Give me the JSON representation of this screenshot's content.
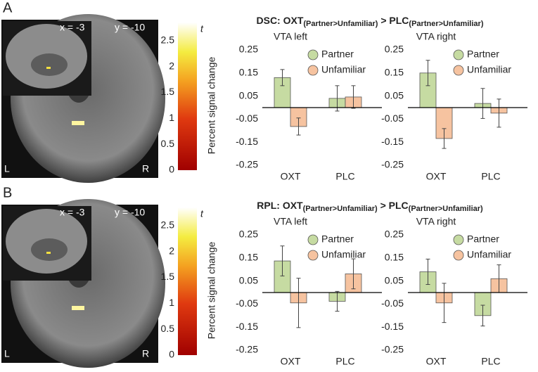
{
  "panels": [
    {
      "label": "A",
      "brain": {
        "x_coord": "x = -3",
        "y_coord": "y = -10",
        "left": "L",
        "right": "R"
      },
      "colorbar": {
        "label": "t",
        "lim": [
          0,
          2.85
        ],
        "ticks": [
          0,
          0.5,
          1,
          1.5,
          2,
          2.5
        ]
      },
      "title_parts": [
        "DSC: OXT",
        "(Partner>Unfamiliar)",
        " > PLC",
        "(Partner>Unfamiliar)"
      ],
      "ylabel": "Percent signal change"
    },
    {
      "label": "B",
      "brain": {
        "x_coord": "x = -3",
        "y_coord": "y = -10",
        "left": "L",
        "right": "R"
      },
      "colorbar": {
        "label": "t",
        "lim": [
          0,
          2.85
        ],
        "ticks": [
          0,
          0.5,
          1,
          1.5,
          2,
          2.5
        ]
      },
      "title_parts": [
        "RPL: OXT",
        "(Partner>Unfamiliar)",
        " > PLC",
        "(Partner>Unfamiliar)"
      ],
      "ylabel": "Percent signal change"
    }
  ],
  "chart_data": [
    {
      "type": "bar",
      "title": "VTA left",
      "categories": [
        "OXT",
        "PLC"
      ],
      "ylim": [
        -0.25,
        0.25
      ],
      "yticks": [
        0.25,
        0.15,
        0.05,
        -0.05,
        -0.15,
        -0.25
      ],
      "series": [
        {
          "name": "Partner",
          "color": "#c6dba2",
          "values": [
            0.13,
            0.04
          ],
          "errors": [
            0.035,
            0.055
          ]
        },
        {
          "name": "Unfamiliar",
          "color": "#f6c3a0",
          "values": [
            -0.082,
            0.046
          ],
          "errors": [
            0.037,
            0.049
          ]
        }
      ]
    },
    {
      "type": "bar",
      "title": "VTA right",
      "categories": [
        "OXT",
        "PLC"
      ],
      "ylim": [
        -0.25,
        0.25
      ],
      "yticks": [
        0.25,
        0.15,
        0.05,
        -0.05,
        -0.15,
        -0.25
      ],
      "series": [
        {
          "name": "Partner",
          "color": "#c6dba2",
          "values": [
            0.15,
            0.018
          ],
          "errors": [
            0.055,
            0.065
          ]
        },
        {
          "name": "Unfamiliar",
          "color": "#f6c3a0",
          "values": [
            -0.134,
            -0.024
          ],
          "errors": [
            0.043,
            0.061
          ]
        }
      ]
    },
    {
      "type": "bar",
      "title": "VTA left",
      "categories": [
        "OXT",
        "PLC"
      ],
      "ylim": [
        -0.25,
        0.25
      ],
      "yticks": [
        0.25,
        0.15,
        0.05,
        -0.05,
        -0.15,
        -0.25
      ],
      "series": [
        {
          "name": "Partner",
          "color": "#c6dba2",
          "values": [
            0.137,
            -0.038
          ],
          "errors": [
            0.065,
            0.043
          ]
        },
        {
          "name": "Unfamiliar",
          "color": "#f6c3a0",
          "values": [
            -0.045,
            0.081
          ],
          "errors": [
            0.107,
            0.065
          ]
        }
      ]
    },
    {
      "type": "bar",
      "title": "VTA right",
      "categories": [
        "OXT",
        "PLC"
      ],
      "ylim": [
        -0.25,
        0.25
      ],
      "yticks": [
        0.25,
        0.15,
        0.05,
        -0.05,
        -0.15,
        -0.25
      ],
      "series": [
        {
          "name": "Partner",
          "color": "#c6dba2",
          "values": [
            0.09,
            -0.1
          ],
          "errors": [
            0.055,
            0.045
          ]
        },
        {
          "name": "Unfamiliar",
          "color": "#f6c3a0",
          "values": [
            -0.045,
            0.06
          ],
          "errors": [
            0.085,
            0.06
          ]
        }
      ]
    }
  ]
}
